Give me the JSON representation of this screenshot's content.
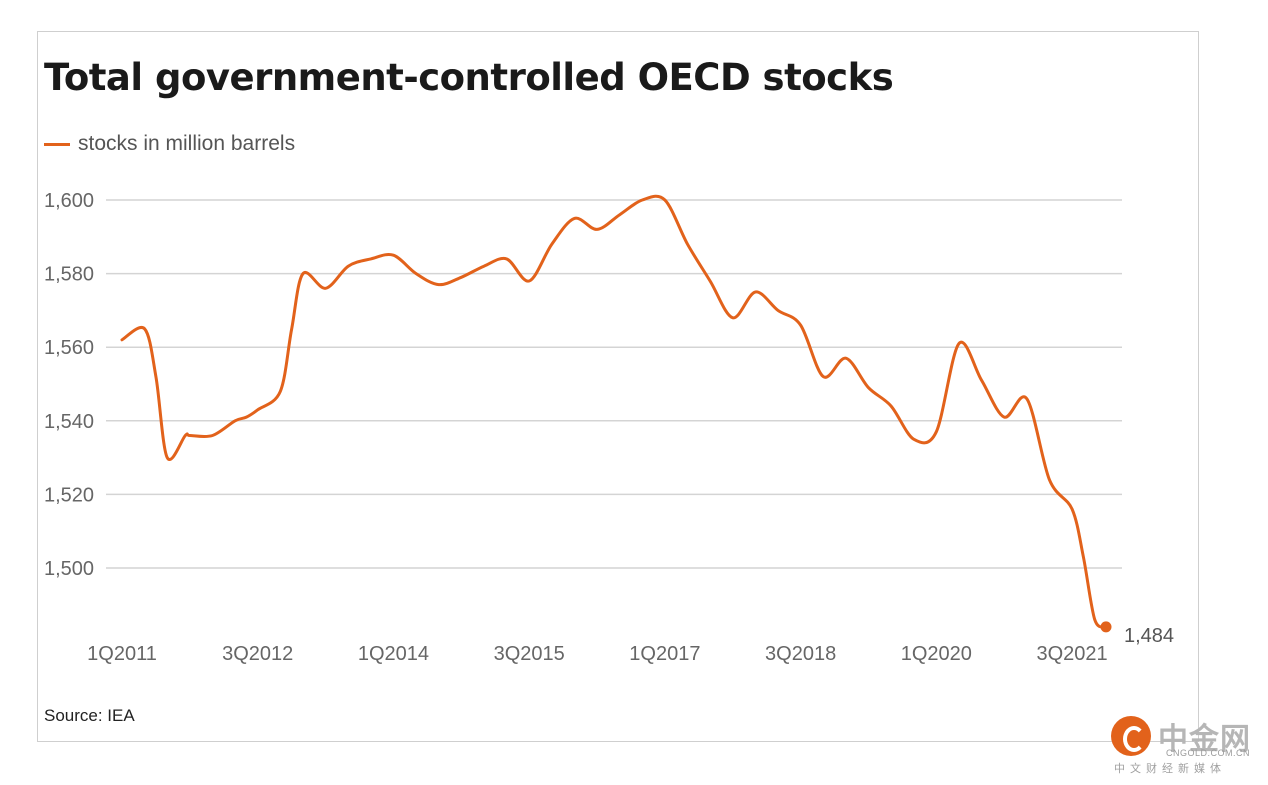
{
  "chart_data": {
    "type": "line",
    "title": "Total government-controlled OECD stocks",
    "legend": "stocks in million barrels",
    "source": "Source: IEA",
    "ylim": [
      1484,
      1600
    ],
    "yticks": [
      1500,
      1520,
      1540,
      1560,
      1580,
      1600
    ],
    "ytick_labels": [
      "1,500",
      "1,520",
      "1,540",
      "1,560",
      "1,580",
      "1,600"
    ],
    "xtick_labels": [
      "1Q2011",
      "3Q2012",
      "1Q2014",
      "3Q2015",
      "1Q2017",
      "3Q2018",
      "1Q2020",
      "3Q2021"
    ],
    "xtick_positions": [
      0,
      6,
      12,
      18,
      24,
      30,
      36,
      42
    ],
    "grid": true,
    "color": "#e2621b",
    "end_label": "1,484",
    "series": [
      {
        "x": [
          0,
          1,
          1.5,
          2,
          2.8,
          3,
          4,
          5,
          5.5,
          6,
          7,
          7.5,
          8,
          9,
          10,
          11,
          12,
          13,
          14,
          15,
          16,
          17,
          18,
          19,
          20,
          21,
          22,
          23,
          24,
          25,
          26,
          27,
          28,
          29,
          30,
          31,
          32,
          33,
          34,
          35,
          36,
          37,
          38,
          39,
          40,
          41,
          42,
          42.5,
          43,
          43.5
        ],
        "values": [
          1562,
          1565,
          1552,
          1530,
          1536,
          1536,
          1536,
          1540,
          1541,
          1543,
          1548,
          1565,
          1580,
          1576,
          1582,
          1584,
          1585,
          1580,
          1577,
          1579,
          1582,
          1584,
          1578,
          1588,
          1595,
          1592,
          1596,
          1600,
          1600,
          1588,
          1578,
          1568,
          1575,
          1570,
          1566,
          1552,
          1557,
          1549,
          1544,
          1535,
          1537,
          1561,
          1551,
          1541,
          1546,
          1524,
          1516,
          1503,
          1486,
          1484
        ]
      }
    ]
  },
  "logo": {
    "name": "中金网",
    "domain": "CNGOLD.COM.CN",
    "tagline": "中文财经新媒体"
  }
}
